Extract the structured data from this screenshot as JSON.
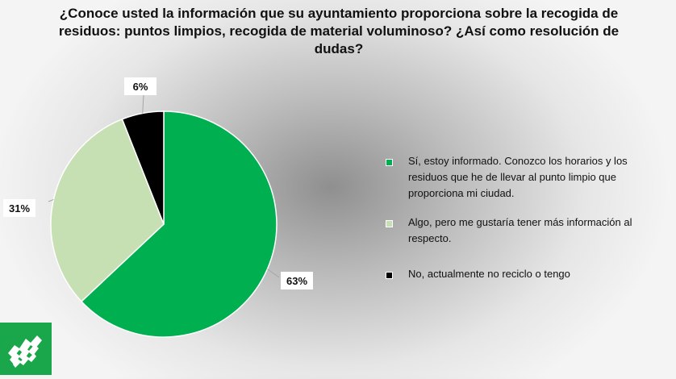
{
  "chart_data": {
    "type": "pie",
    "title": "¿Conoce usted la información que su ayuntamiento proporciona sobre la recogida de\nresiduos: puntos limpios, recogida de material voluminoso? ¿Así como resolución de\ndudas?",
    "categories": [
      "Sí, estoy informado. Conozco los horarios y los residuos que he de llevar al punto limpio que proporciona mi ciudad.",
      "Algo, pero me gustaría tener más información al respecto.",
      "No, actualmente no reciclo o tengo"
    ],
    "values": [
      63,
      31,
      6
    ],
    "data_labels": [
      "63%",
      "31%",
      "6%"
    ],
    "colors": [
      "#00b050",
      "#c6e0b4",
      "#000000"
    ],
    "legend_placement": "right"
  },
  "logo": {
    "icon": "municipal-logo-icon",
    "color": "#1aa64a"
  }
}
